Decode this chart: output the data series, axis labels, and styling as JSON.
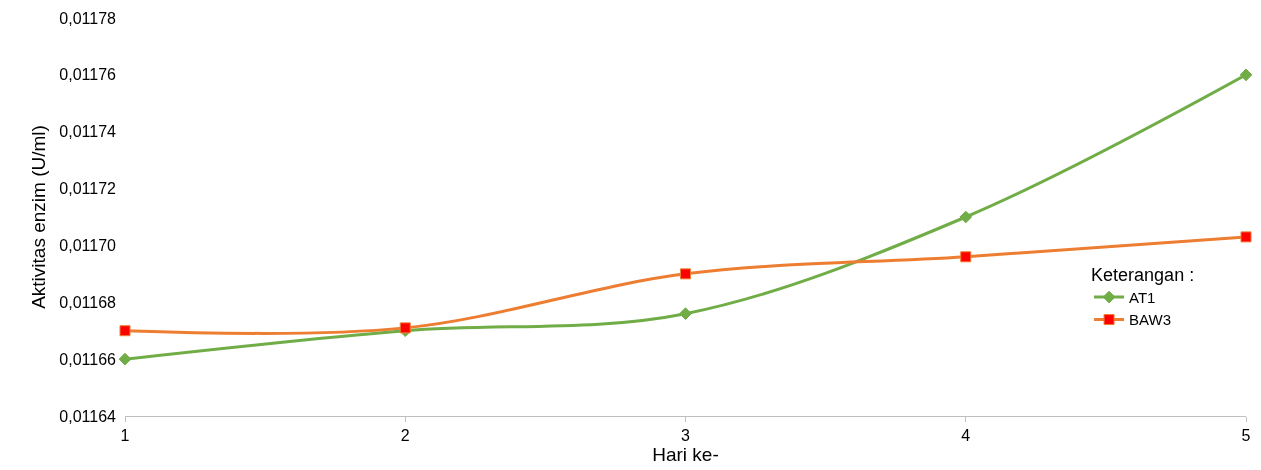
{
  "chart_data": {
    "type": "line",
    "xlabel": "Hari ke-",
    "ylabel": "Aktivitas enzim (U/ml)",
    "legend_title": "Keterangan :",
    "legend": "right",
    "x": [
      1,
      2,
      3,
      4,
      5
    ],
    "series": [
      {
        "name": "AT1",
        "color": "#70ad47",
        "marker": "diamond",
        "values": [
          0.01166,
          0.01167,
          0.011676,
          0.01171,
          0.01176
        ]
      },
      {
        "name": "BAW3",
        "color": "#ed7d31",
        "marker": "square",
        "values": [
          0.01167,
          0.011671,
          0.01169,
          0.011696,
          0.011703
        ]
      }
    ],
    "xlim": [
      1,
      5
    ],
    "xticks": [
      1,
      2,
      3,
      4,
      5
    ],
    "ylim": [
      0.01164,
      0.01178
    ],
    "yticks": [
      {
        "value": 0.01164,
        "label": "0,01164"
      },
      {
        "value": 0.01166,
        "label": "0,01166"
      },
      {
        "value": 0.01168,
        "label": "0,01168"
      },
      {
        "value": 0.0117,
        "label": "0,01170"
      },
      {
        "value": 0.01172,
        "label": "0,01172"
      },
      {
        "value": 0.01174,
        "label": "0,01174"
      },
      {
        "value": 0.01176,
        "label": "0,01176"
      },
      {
        "value": 0.01178,
        "label": "0,01178"
      }
    ]
  }
}
